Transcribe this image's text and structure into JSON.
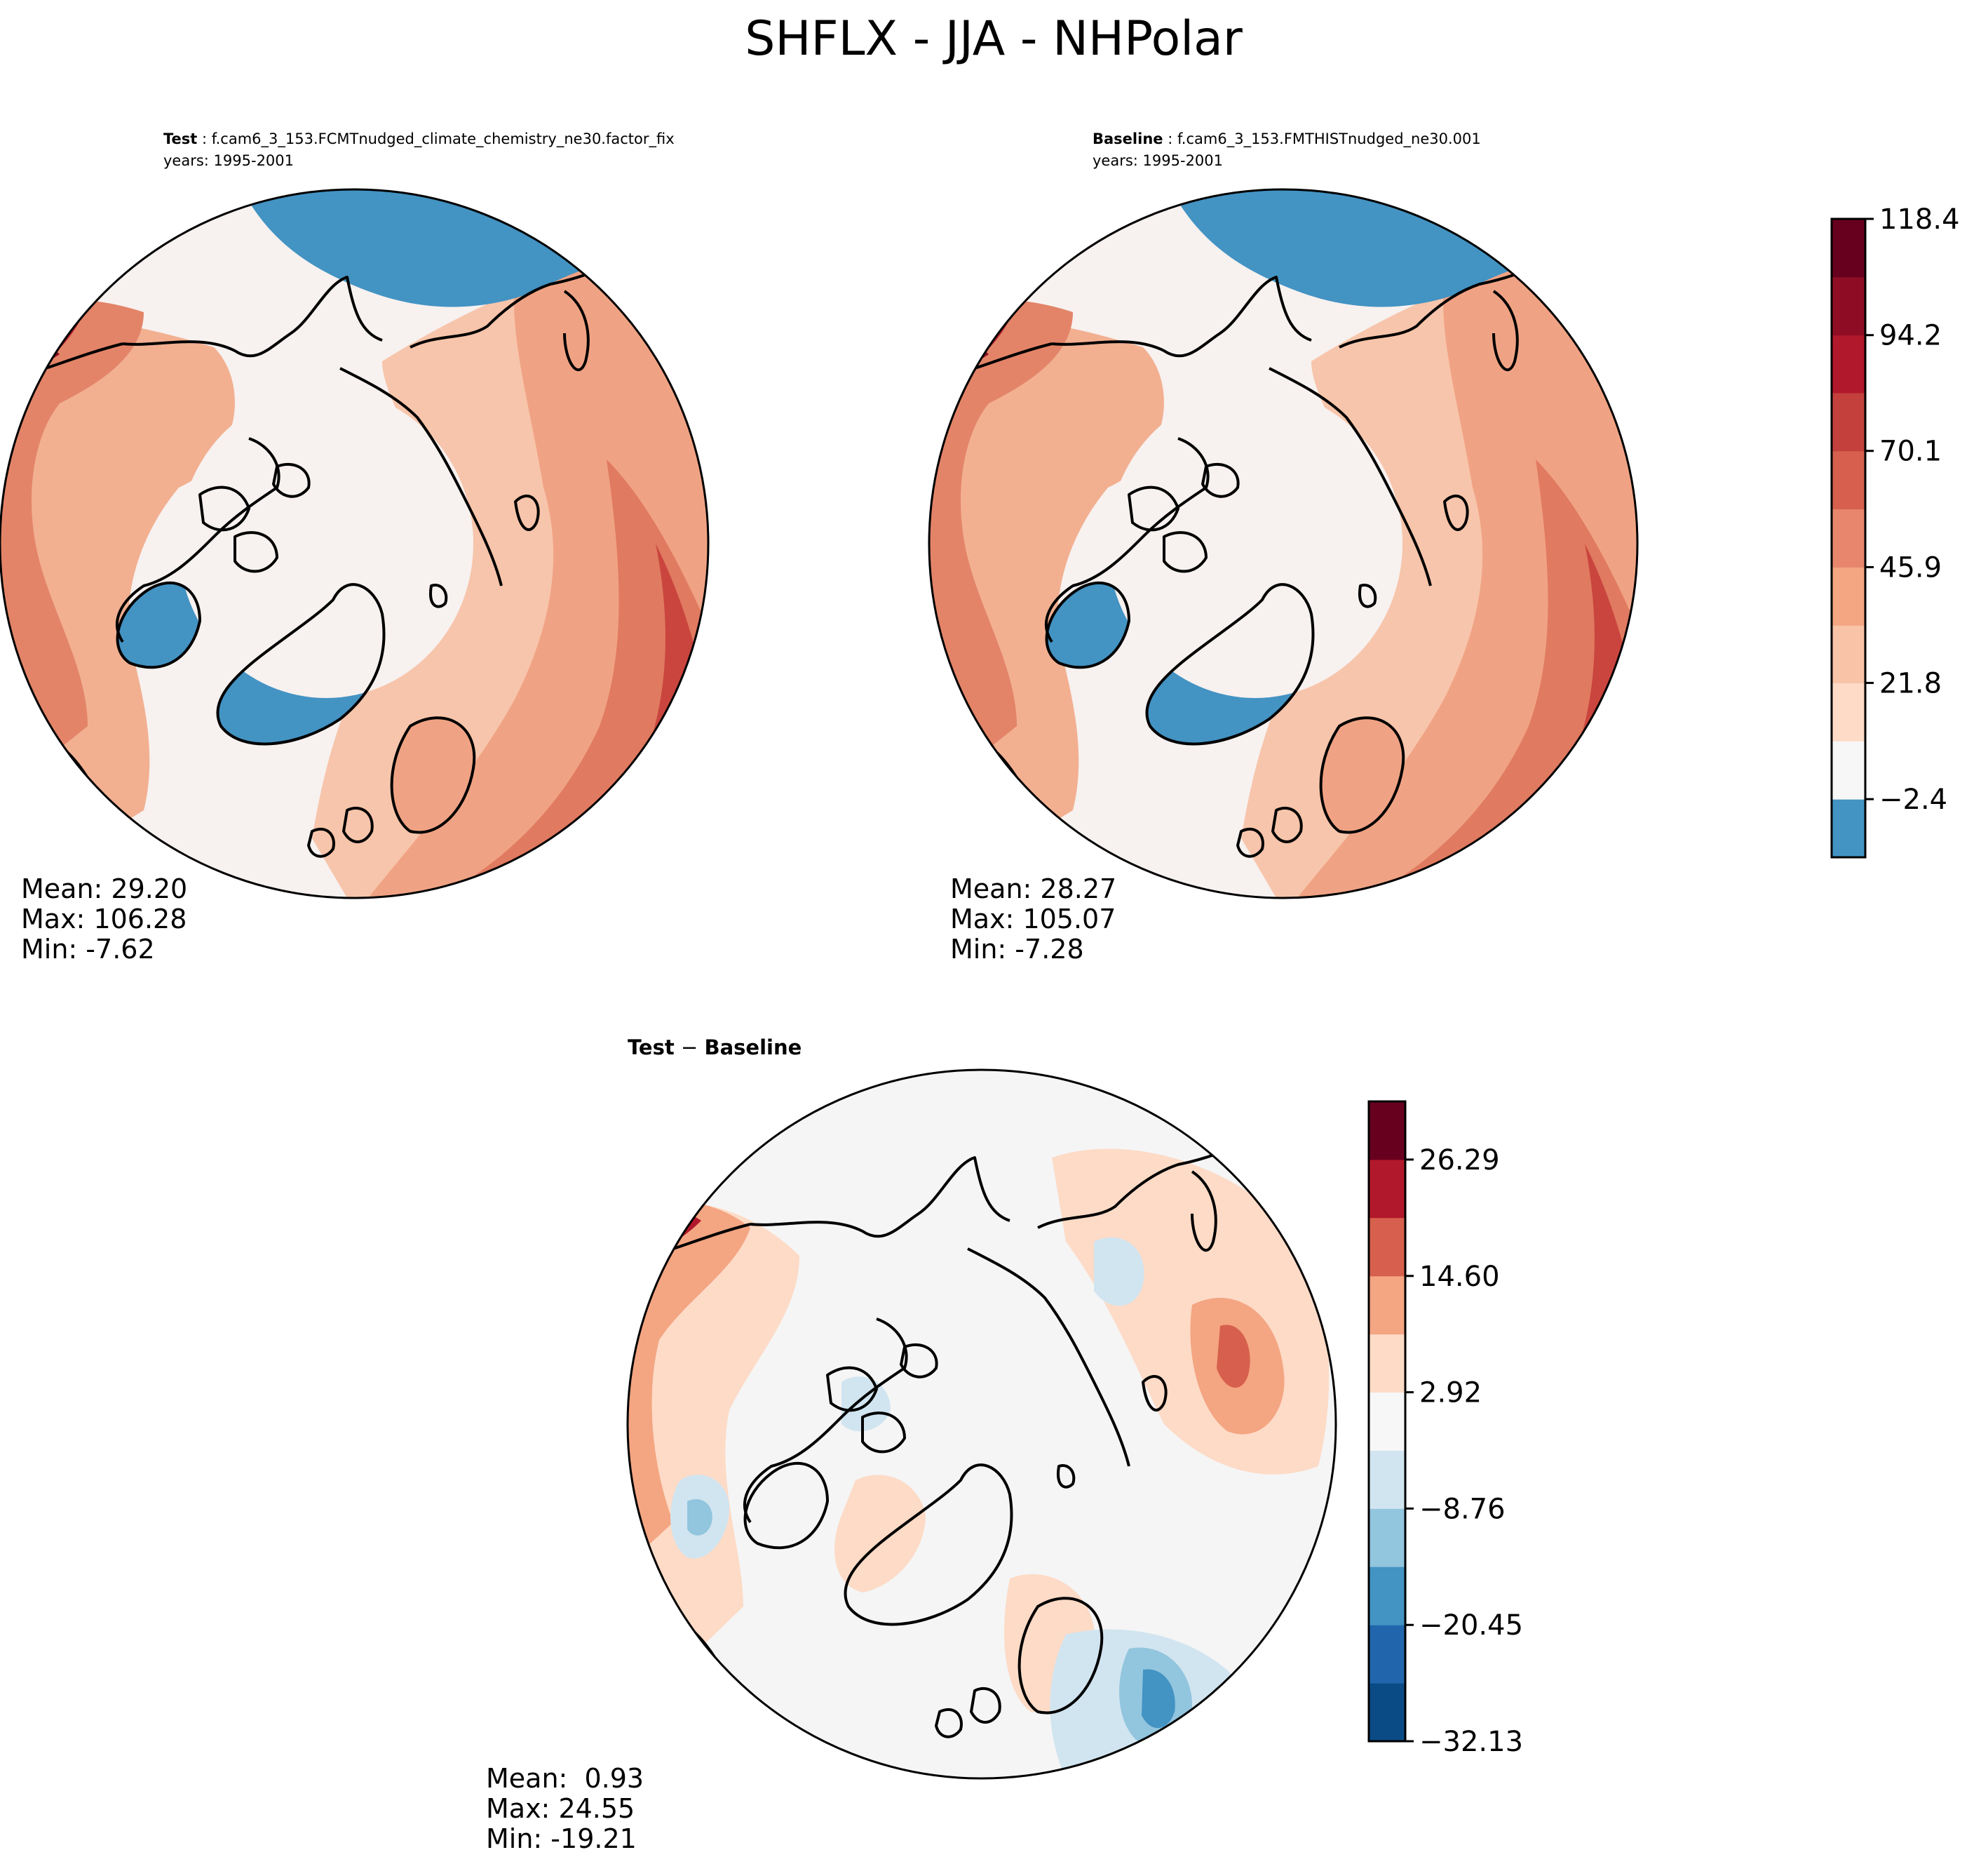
{
  "figure": {
    "title": "SHFLX - JJA - NHPolar"
  },
  "panels": {
    "test": {
      "label_bold": "Test",
      "label_text": " : f.cam6_3_153.FCMTnudged_climate_chemistry_ne30.factor_fix",
      "years": "years: 1995-2001",
      "stats": {
        "mean": "Mean: 29.20",
        "max": "Max: 106.28",
        "min": "Min: -7.62"
      }
    },
    "baseline": {
      "label_bold": "Baseline",
      "label_text": " : f.cam6_3_153.FMTHISTnudged_ne30.001",
      "years": "years: 1995-2001",
      "stats": {
        "mean": "Mean: 28.27",
        "max": "Max: 105.07",
        "min": "Min: -7.28"
      }
    },
    "diff": {
      "label_a": "Test",
      "label_op": " − ",
      "label_b": "Baseline",
      "stats": {
        "mean": "Mean:  0.93",
        "max": "Max: 24.55",
        "min": "Min: -19.21"
      }
    }
  },
  "chart_data": [
    {
      "type": "heatmap",
      "projection": "north-polar-stereographic",
      "panel": "test",
      "mean": 29.2,
      "max": 106.28,
      "min": -7.62,
      "colorbar": {
        "ticks": [
          -2.4,
          21.8,
          45.9,
          70.1,
          94.2,
          118.4
        ],
        "tick_labels": [
          "−2.4",
          "21.8",
          "45.9",
          "70.1",
          "94.2",
          "118.4"
        ],
        "levels": [
          -14.5,
          -2.4,
          9.7,
          21.8,
          33.8,
          45.9,
          58.0,
          70.1,
          82.2,
          94.2,
          106.3,
          118.4
        ],
        "colors": [
          "#4393c3",
          "#f7f7f7",
          "#fddbc7",
          "#f9c3a8",
          "#f4a582",
          "#e7866c",
          "#d6604d",
          "#c3403d",
          "#b2182b",
          "#8e0d25",
          "#67001f"
        ]
      }
    },
    {
      "type": "heatmap",
      "projection": "north-polar-stereographic",
      "panel": "baseline",
      "mean": 28.27,
      "max": 105.07,
      "min": -7.28,
      "shares_colorbar_with": "test"
    },
    {
      "type": "heatmap",
      "projection": "north-polar-stereographic",
      "panel": "diff",
      "mean": 0.93,
      "max": 24.55,
      "min": -19.21,
      "colorbar": {
        "ticks": [
          -32.13,
          -20.45,
          -8.76,
          2.92,
          14.6,
          26.29
        ],
        "tick_labels": [
          "−32.13",
          "−20.45",
          "−8.76",
          "2.92",
          "14.60",
          "26.29"
        ],
        "levels": [
          -32.13,
          -26.29,
          -20.45,
          -14.6,
          -8.76,
          -2.92,
          2.92,
          8.76,
          14.6,
          20.45,
          26.29,
          32.13
        ],
        "colors": [
          "#0b4b85",
          "#2166ac",
          "#4393c3",
          "#92c5de",
          "#d1e5f0",
          "#f7f7f7",
          "#fddbc7",
          "#f4a582",
          "#d6604d",
          "#b2182b",
          "#67001f"
        ]
      }
    }
  ]
}
